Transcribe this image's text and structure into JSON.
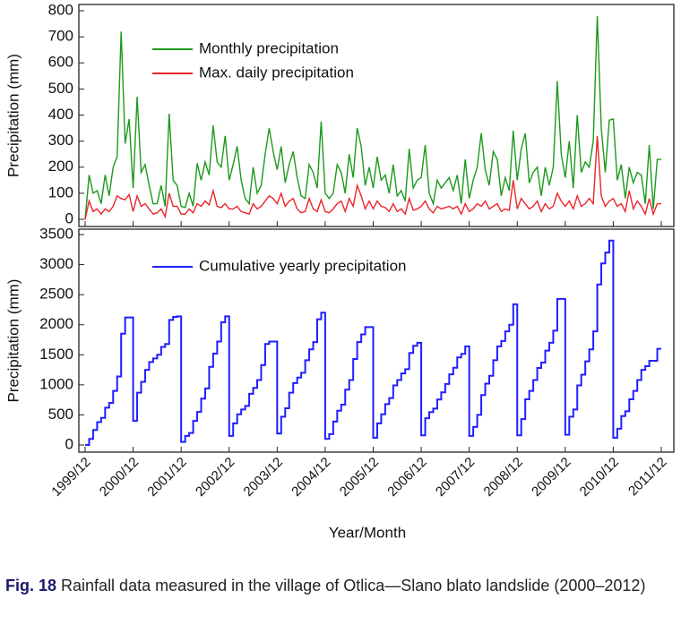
{
  "chart_data": {
    "type": "line",
    "xlabel": "Year/Month",
    "x": [
      "1999/12",
      "2000/01",
      "2000/02",
      "2000/03",
      "2000/04",
      "2000/05",
      "2000/06",
      "2000/07",
      "2000/08",
      "2000/09",
      "2000/10",
      "2000/11",
      "2000/12",
      "2001/01",
      "2001/02",
      "2001/03",
      "2001/04",
      "2001/05",
      "2001/06",
      "2001/07",
      "2001/08",
      "2001/09",
      "2001/10",
      "2001/11",
      "2001/12",
      "2002/01",
      "2002/02",
      "2002/03",
      "2002/04",
      "2002/05",
      "2002/06",
      "2002/07",
      "2002/08",
      "2002/09",
      "2002/10",
      "2002/11",
      "2002/12",
      "2003/01",
      "2003/02",
      "2003/03",
      "2003/04",
      "2003/05",
      "2003/06",
      "2003/07",
      "2003/08",
      "2003/09",
      "2003/10",
      "2003/11",
      "2003/12",
      "2004/01",
      "2004/02",
      "2004/03",
      "2004/04",
      "2004/05",
      "2004/06",
      "2004/07",
      "2004/08",
      "2004/09",
      "2004/10",
      "2004/11",
      "2004/12",
      "2005/01",
      "2005/02",
      "2005/03",
      "2005/04",
      "2005/05",
      "2005/06",
      "2005/07",
      "2005/08",
      "2005/09",
      "2005/10",
      "2005/11",
      "2005/12",
      "2006/01",
      "2006/02",
      "2006/03",
      "2006/04",
      "2006/05",
      "2006/06",
      "2006/07",
      "2006/08",
      "2006/09",
      "2006/10",
      "2006/11",
      "2006/12",
      "2007/01",
      "2007/02",
      "2007/03",
      "2007/04",
      "2007/05",
      "2007/06",
      "2007/07",
      "2007/08",
      "2007/09",
      "2007/10",
      "2007/11",
      "2007/12",
      "2008/01",
      "2008/02",
      "2008/03",
      "2008/04",
      "2008/05",
      "2008/06",
      "2008/07",
      "2008/08",
      "2008/09",
      "2008/10",
      "2008/11",
      "2008/12",
      "2009/01",
      "2009/02",
      "2009/03",
      "2009/04",
      "2009/05",
      "2009/06",
      "2009/07",
      "2009/08",
      "2009/09",
      "2009/10",
      "2009/11",
      "2009/12",
      "2010/01",
      "2010/02",
      "2010/03",
      "2010/04",
      "2010/05",
      "2010/06",
      "2010/07",
      "2010/08",
      "2010/09",
      "2010/10",
      "2010/11",
      "2010/12",
      "2011/01",
      "2011/02",
      "2011/03",
      "2011/04",
      "2011/05",
      "2011/06",
      "2011/07",
      "2011/08",
      "2011/09",
      "2011/10",
      "2011/11",
      "2011/12"
    ],
    "panels": [
      {
        "ylabel": "Precipitation (mm)",
        "ylim": [
          0,
          800
        ],
        "yticks": [
          0,
          100,
          200,
          300,
          400,
          500,
          600,
          700,
          800
        ],
        "series": [
          {
            "name": "Monthly precipitation",
            "color": "#1c9a1c",
            "values": [
              0,
              170,
              100,
              110,
              60,
              170,
              90,
              200,
              240,
              720,
              290,
              385,
              120,
              470,
              180,
              210,
              130,
              60,
              60,
              130,
              50,
              405,
              150,
              130,
              50,
              45,
              100,
              50,
              215,
              150,
              220,
              170,
              360,
              220,
              200,
              320,
              150,
              210,
              280,
              150,
              80,
              60,
              200,
              100,
              130,
              250,
              350,
              260,
              190,
              280,
              140,
              210,
              260,
              160,
              90,
              80,
              210,
              180,
              120,
              375,
              100,
              80,
              100,
              210,
              180,
              100,
              250,
              160,
              350,
              280,
              130,
              200,
              120,
              240,
              150,
              170,
              100,
              210,
              90,
              110,
              70,
              270,
              120,
              150,
              160,
              285,
              100,
              60,
              150,
              120,
              140,
              160,
              110,
              170,
              60,
              230,
              80,
              150,
              200,
              330,
              190,
              130,
              260,
              230,
              90,
              160,
              110,
              340,
              150,
              270,
              330,
              140,
              180,
              200,
              90,
              200,
              130,
              200,
              530,
              250,
              160,
              300,
              120,
              400,
              180,
              220,
              200,
              300,
              780,
              350,
              180,
              380,
              385,
              150,
              210,
              80,
              200,
              140,
              180,
              170,
              60,
              285,
              40,
              230,
              230
            ]
          },
          {
            "name": "Max. daily precipitation",
            "color": "#e8262a",
            "values": [
              0,
              70,
              30,
              40,
              20,
              40,
              30,
              50,
              90,
              80,
              75,
              95,
              30,
              90,
              50,
              60,
              40,
              20,
              25,
              40,
              10,
              100,
              50,
              50,
              20,
              20,
              40,
              25,
              60,
              50,
              70,
              55,
              110,
              50,
              45,
              60,
              40,
              40,
              50,
              30,
              25,
              20,
              60,
              40,
              50,
              70,
              90,
              80,
              60,
              100,
              50,
              70,
              80,
              40,
              25,
              30,
              80,
              40,
              30,
              75,
              30,
              25,
              40,
              60,
              70,
              30,
              80,
              50,
              130,
              90,
              40,
              70,
              40,
              70,
              50,
              45,
              30,
              60,
              30,
              40,
              20,
              80,
              35,
              40,
              50,
              70,
              40,
              25,
              50,
              40,
              45,
              50,
              40,
              50,
              20,
              60,
              30,
              40,
              60,
              50,
              70,
              40,
              50,
              60,
              30,
              40,
              35,
              150,
              40,
              80,
              60,
              40,
              50,
              70,
              30,
              60,
              40,
              50,
              100,
              70,
              50,
              70,
              40,
              90,
              50,
              60,
              80,
              60,
              320,
              90,
              50,
              70,
              80,
              50,
              60,
              30,
              110,
              40,
              70,
              50,
              20,
              80,
              20,
              60,
              60
            ]
          }
        ]
      },
      {
        "ylabel": "Precipitation (mm)",
        "ylim": [
          0,
          3500
        ],
        "yticks": [
          0,
          500,
          1000,
          1500,
          2000,
          2500,
          3000,
          3500
        ],
        "series": [
          {
            "name": "Cumulative yearly precipitation",
            "color": "#1f1fff",
            "values": [
              0,
              100,
              250,
              380,
              450,
              620,
              700,
              900,
              1140,
              1850,
              2120,
              2120,
              400,
              870,
              1050,
              1250,
              1380,
              1440,
              1500,
              1630,
              1680,
              2080,
              2130,
              2140,
              50,
              150,
              200,
              400,
              550,
              770,
              940,
              1300,
              1520,
              1720,
              2040,
              2140,
              150,
              360,
              510,
              590,
              650,
              850,
              950,
              1080,
              1330,
              1680,
              1720,
              1720,
              190,
              470,
              610,
              870,
              1030,
              1120,
              1200,
              1410,
              1590,
              1710,
              2090,
              2200,
              100,
              180,
              390,
              570,
              670,
              920,
              1080,
              1430,
              1710,
              1840,
              1960,
              1960,
              120,
              360,
              510,
              680,
              780,
              990,
              1080,
              1190,
              1260,
              1530,
              1650,
              1700,
              160,
              445,
              545,
              605,
              755,
              875,
              1015,
              1175,
              1285,
              1455,
              1515,
              1640,
              150,
              300,
              500,
              830,
              1020,
              1150,
              1410,
              1640,
              1730,
              1890,
              2000,
              2340,
              160,
              430,
              760,
              900,
              1080,
              1280,
              1370,
              1570,
              1700,
              1900,
              2430,
              2430,
              170,
              470,
              590,
              990,
              1170,
              1390,
              1590,
              1890,
              2670,
              3020,
              3200,
              3400,
              120,
              270,
              480,
              560,
              760,
              900,
              1080,
              1250,
              1310,
              1400,
              1400,
              1600,
              1600
            ]
          }
        ]
      }
    ]
  },
  "caption": {
    "label": "Fig. 18",
    "text": "Rainfall data measured in the village of Otlica—Slano blato landslide (2000–2012)"
  }
}
